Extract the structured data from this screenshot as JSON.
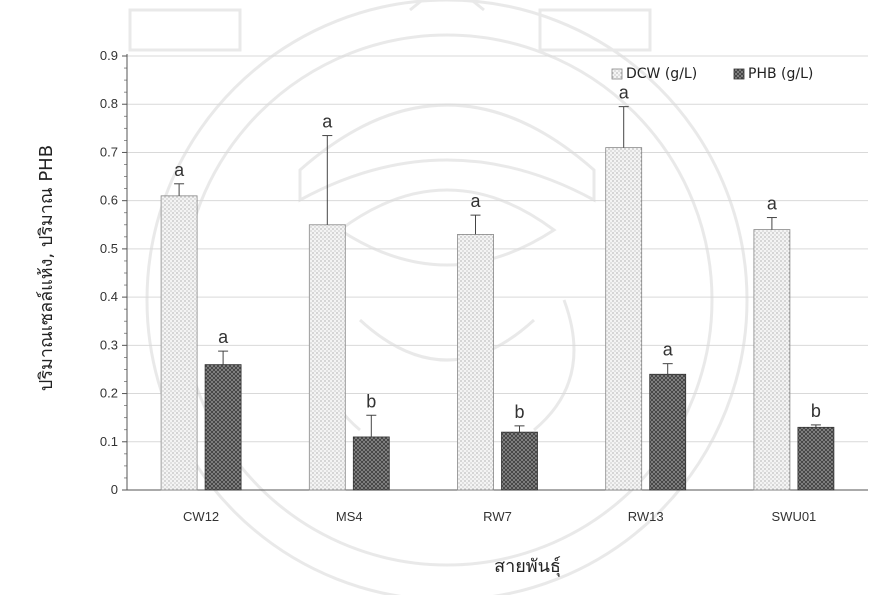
{
  "chart_data": {
    "type": "bar",
    "xlabel": "สายพันธุ์",
    "ylabel": "ปริมาณเซลล์แห้ง, ปริมาณ PHB",
    "ylim": [
      0,
      0.9
    ],
    "yticks": [
      "0",
      "0.1",
      "0.2",
      "0.3",
      "0.4",
      "0.5",
      "0.6",
      "0.7",
      "0.8",
      "0.9"
    ],
    "categories": [
      "CW12",
      "MS4",
      "RW7",
      "RW13",
      "SWU01"
    ],
    "grid": true,
    "legend_position": "top-right",
    "series": [
      {
        "name": "DCW (g/L)",
        "values": [
          0.61,
          0.55,
          0.53,
          0.71,
          0.54
        ],
        "errors": [
          0.025,
          0.185,
          0.04,
          0.085,
          0.025
        ],
        "labels": [
          "a",
          "a",
          "a",
          "a",
          "a"
        ],
        "fill": "#f3f3f3",
        "pattern": "light-dots"
      },
      {
        "name": "PHB (g/L)",
        "values": [
          0.26,
          0.11,
          0.12,
          0.24,
          0.13
        ],
        "errors": [
          0.028,
          0.045,
          0.013,
          0.022,
          0.005
        ],
        "labels": [
          "a",
          "b",
          "b",
          "a",
          "b"
        ],
        "fill": "#7a7a7a",
        "pattern": "dark-crosshatch"
      }
    ]
  }
}
